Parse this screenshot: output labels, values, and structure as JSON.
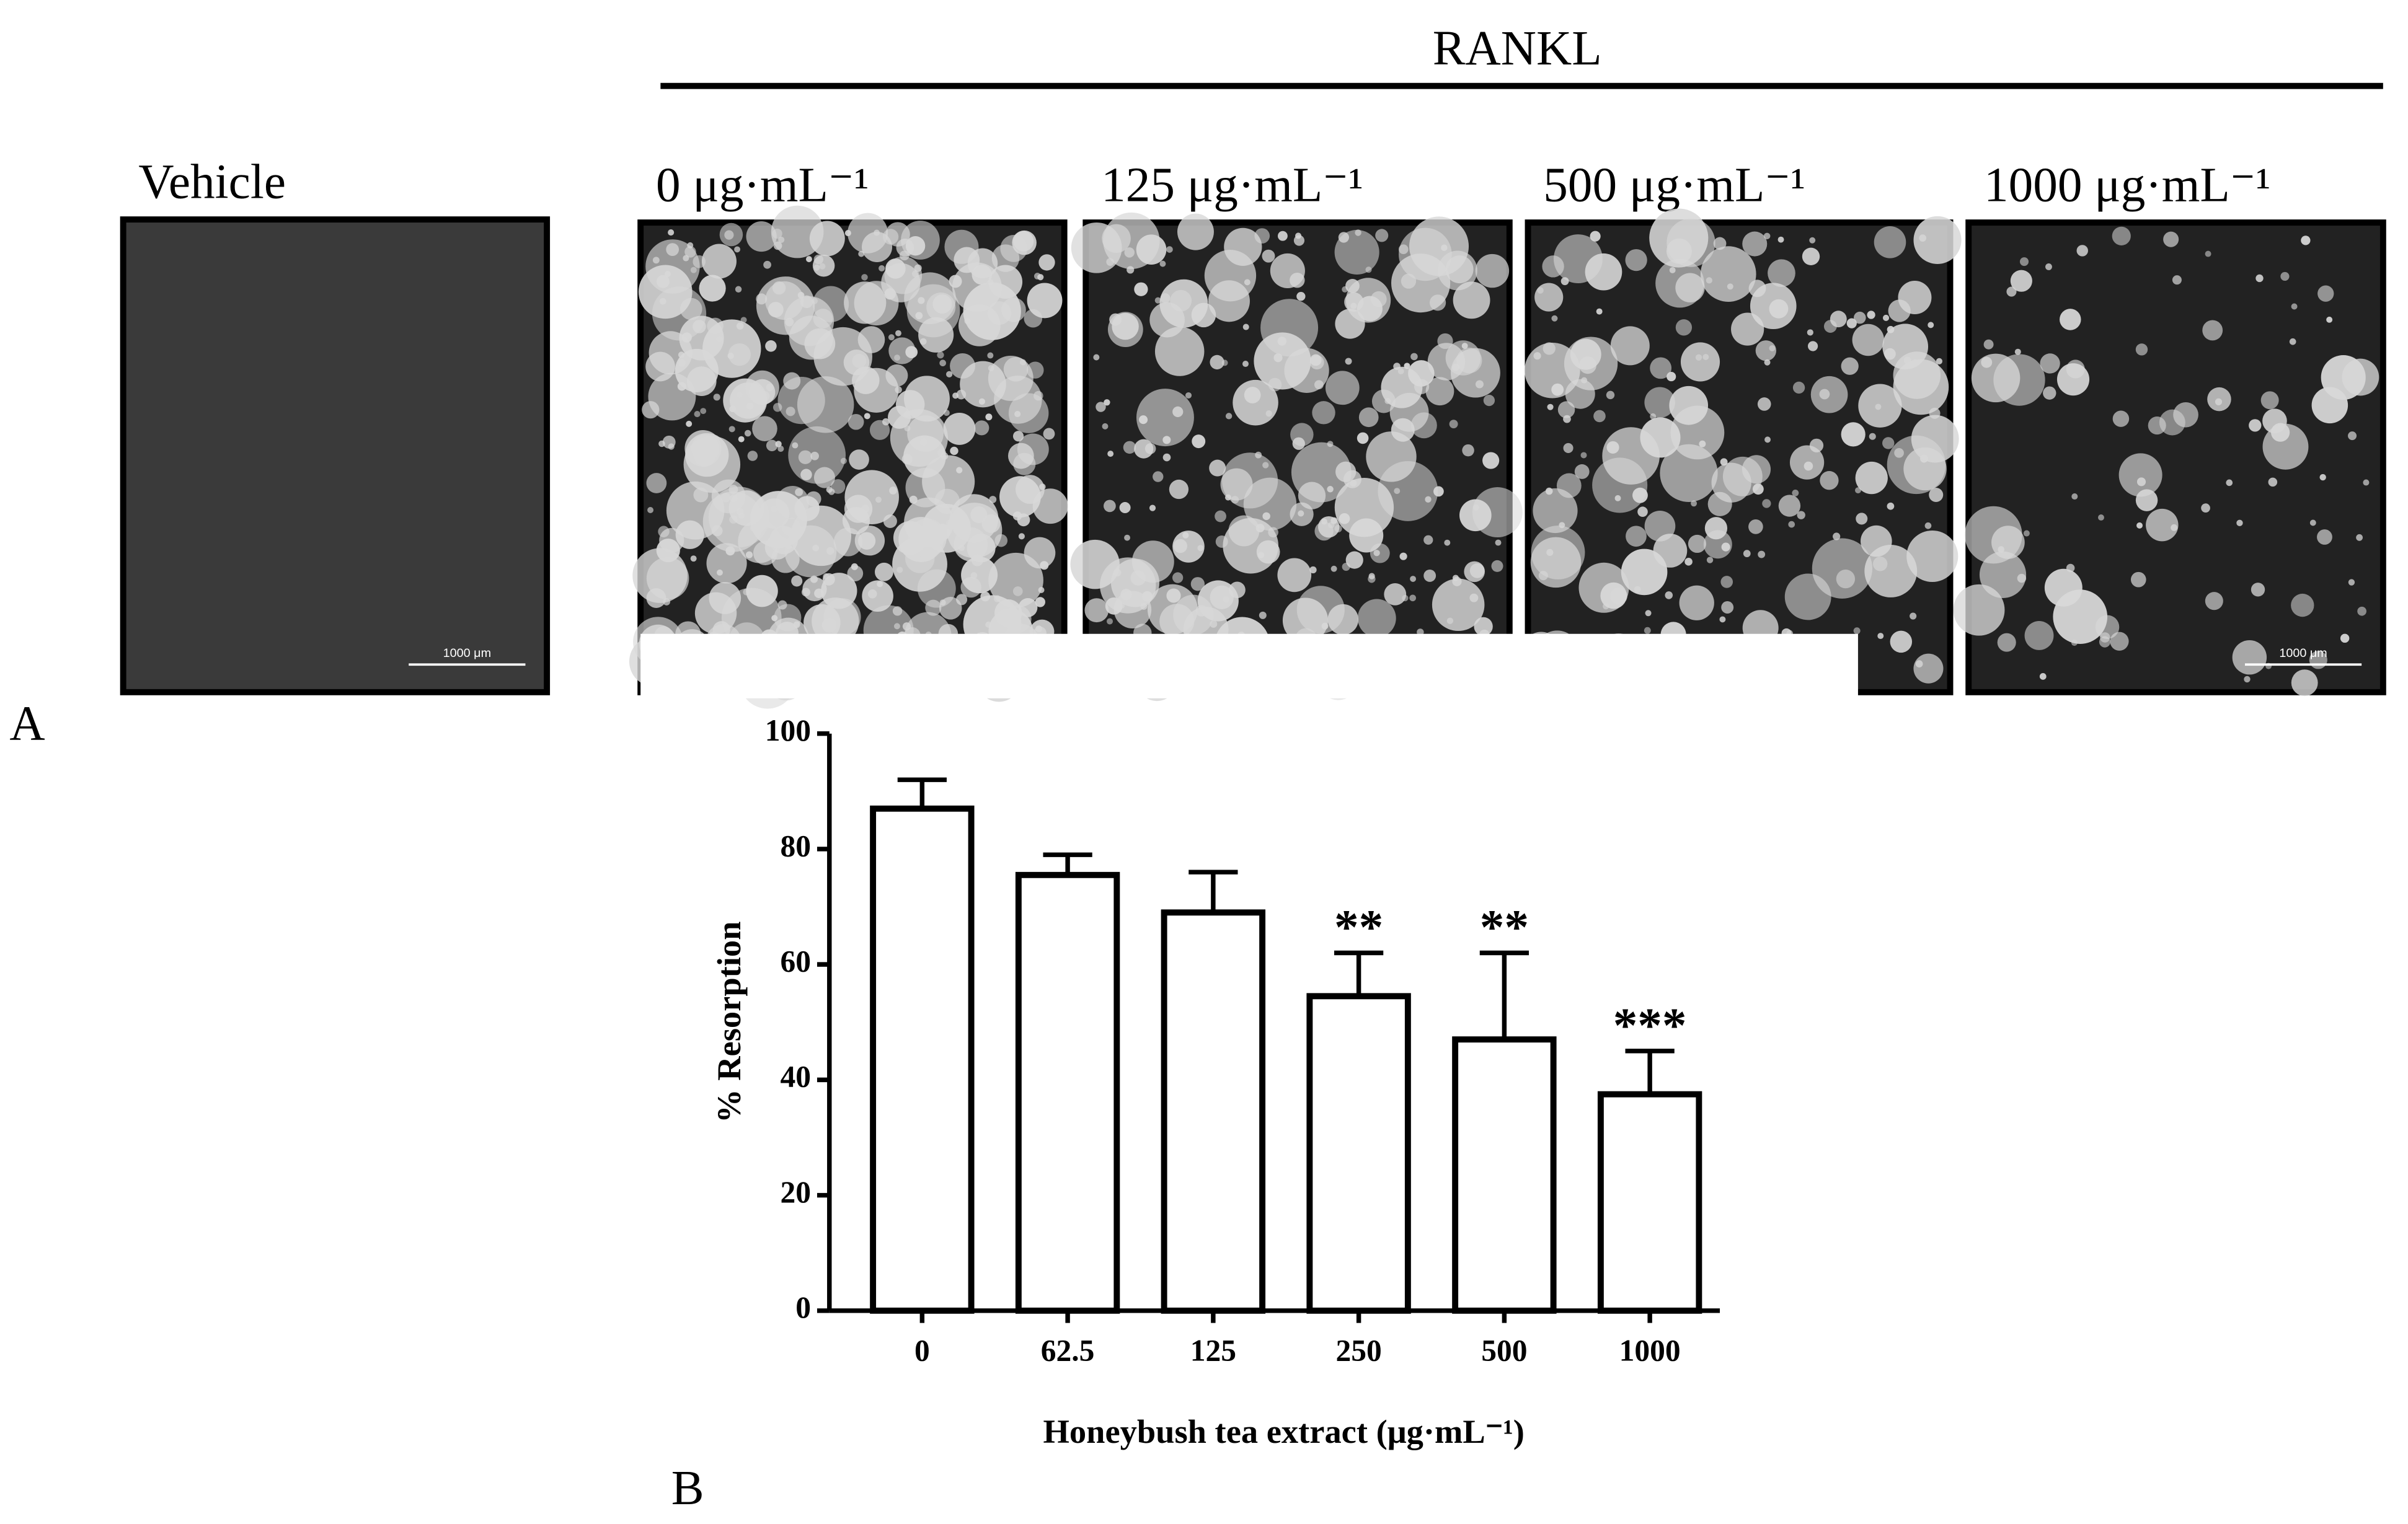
{
  "panel_a": {
    "label": "A",
    "group_label": "RANKL",
    "images": [
      {
        "label": "Vehicle",
        "scale_bar": "1000 μm"
      },
      {
        "label": "0 μg·mL⁻¹"
      },
      {
        "label": "125 μg·mL⁻¹"
      },
      {
        "label": "500 μg·mL⁻¹"
      },
      {
        "label": "1000 μg·mL⁻¹",
        "scale_bar": "1000 μm"
      }
    ]
  },
  "chart_data": {
    "type": "bar",
    "panel_label": "B",
    "x_label": "Honeybush tea extract (μg·mL⁻¹)",
    "y_label": "% Resorption",
    "categories": [
      "0",
      "62.5",
      "125",
      "250",
      "500",
      "1000"
    ],
    "values": [
      87,
      75.5,
      69,
      54.5,
      47,
      37.5
    ],
    "errors": [
      5,
      3.5,
      7,
      7.5,
      15,
      7.5
    ],
    "significance_labels": [
      null,
      null,
      null,
      "**",
      "**",
      "***"
    ],
    "color": "#ffffff",
    "edge_color": "#000000",
    "ylim": [
      0,
      100
    ],
    "yticks": [
      0,
      20,
      40,
      60,
      80,
      100
    ],
    "grid": false
  }
}
